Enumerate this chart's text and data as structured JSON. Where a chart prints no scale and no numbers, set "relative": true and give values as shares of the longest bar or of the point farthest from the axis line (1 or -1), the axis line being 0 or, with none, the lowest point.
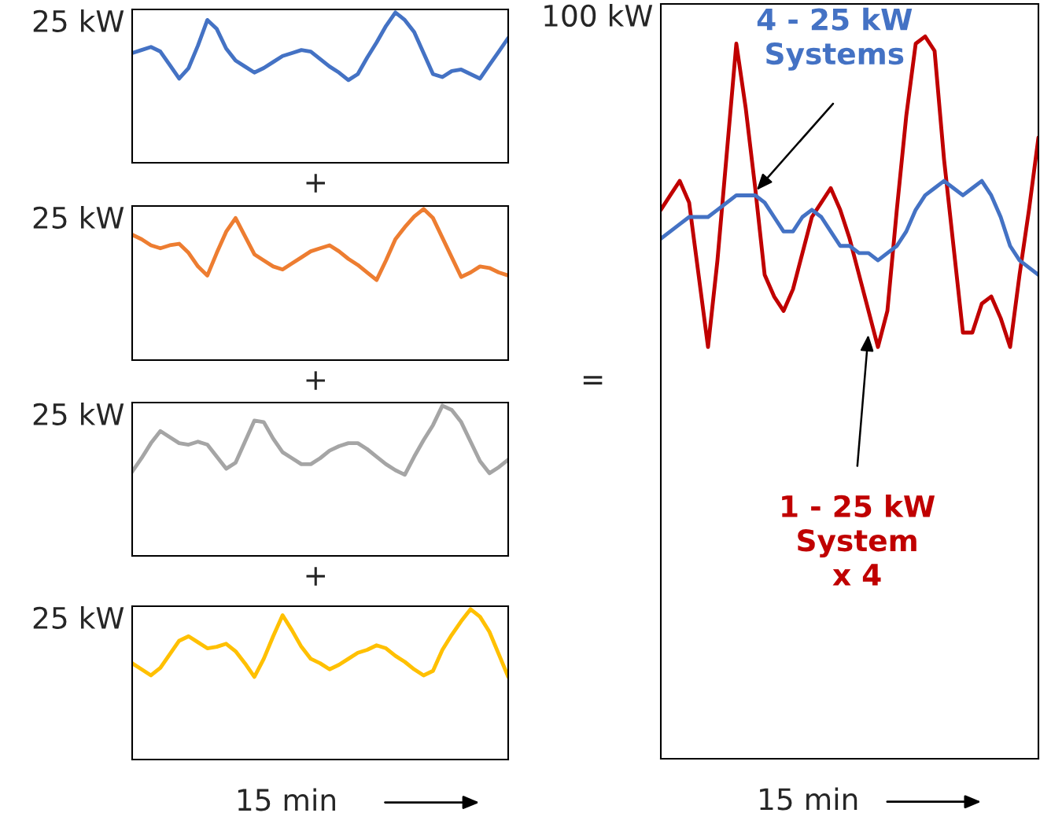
{
  "chart_data": [
    {
      "type": "line",
      "relative": true,
      "categories": [
        null,
        null,
        null,
        null,
        null,
        null,
        null,
        null,
        null,
        null,
        null,
        null,
        null,
        null,
        null,
        null,
        null,
        null,
        null,
        null,
        null,
        null,
        null,
        null,
        null,
        null,
        null,
        null,
        null,
        null,
        null,
        null,
        null,
        null,
        null,
        null,
        null,
        null,
        null,
        null,
        null
      ],
      "ylabel": "25 kW",
      "annotations": [
        "+"
      ],
      "series": [
        {
          "color": "#4472c4",
          "values": [
            0.73,
            0.75,
            0.77,
            0.74,
            0.65,
            0.56,
            0.63,
            0.78,
            0.95,
            0.89,
            0.76,
            0.68,
            0.64,
            0.6,
            0.63,
            0.67,
            0.71,
            0.73,
            0.75,
            0.74,
            0.69,
            0.64,
            0.6,
            0.55,
            0.59,
            0.7,
            0.8,
            0.91,
            1.0,
            0.95,
            0.87,
            0.73,
            0.59,
            0.57,
            0.61,
            0.62,
            0.59,
            0.56,
            0.65,
            0.74,
            0.83
          ]
        }
      ]
    },
    {
      "type": "line",
      "relative": true,
      "categories": [
        null,
        null,
        null,
        null,
        null,
        null,
        null,
        null,
        null,
        null,
        null,
        null,
        null,
        null,
        null,
        null,
        null,
        null,
        null,
        null,
        null,
        null,
        null,
        null,
        null,
        null,
        null,
        null,
        null,
        null,
        null,
        null,
        null,
        null,
        null,
        null,
        null,
        null,
        null,
        null,
        null
      ],
      "ylabel": "25 kW",
      "annotations": [
        "+"
      ],
      "series": [
        {
          "color": "#ed7d31",
          "values": [
            0.83,
            0.8,
            0.76,
            0.74,
            0.76,
            0.77,
            0.71,
            0.62,
            0.56,
            0.71,
            0.85,
            0.94,
            0.82,
            0.7,
            0.66,
            0.62,
            0.6,
            0.64,
            0.68,
            0.72,
            0.74,
            0.76,
            0.72,
            0.67,
            0.63,
            0.58,
            0.53,
            0.66,
            0.8,
            0.88,
            0.95,
            1.0,
            0.94,
            0.81,
            0.68,
            0.55,
            0.58,
            0.62,
            0.61,
            0.58,
            0.56
          ]
        }
      ]
    },
    {
      "type": "line",
      "relative": true,
      "categories": [
        null,
        null,
        null,
        null,
        null,
        null,
        null,
        null,
        null,
        null,
        null,
        null,
        null,
        null,
        null,
        null,
        null,
        null,
        null,
        null,
        null,
        null,
        null,
        null,
        null,
        null,
        null,
        null,
        null,
        null,
        null,
        null,
        null,
        null,
        null,
        null,
        null,
        null,
        null,
        null,
        null
      ],
      "ylabel": "25 kW",
      "annotations": [
        "+"
      ],
      "series": [
        {
          "color": "#a5a5a5",
          "values": [
            0.56,
            0.65,
            0.75,
            0.83,
            0.79,
            0.75,
            0.74,
            0.76,
            0.74,
            0.66,
            0.58,
            0.62,
            0.76,
            0.9,
            0.89,
            0.78,
            0.69,
            0.65,
            0.61,
            0.61,
            0.65,
            0.7,
            0.73,
            0.75,
            0.75,
            0.71,
            0.66,
            0.61,
            0.57,
            0.54,
            0.66,
            0.77,
            0.87,
            1.0,
            0.97,
            0.89,
            0.76,
            0.63,
            0.55,
            0.59,
            0.64
          ]
        }
      ]
    },
    {
      "type": "line",
      "relative": true,
      "categories": [
        null,
        null,
        null,
        null,
        null,
        null,
        null,
        null,
        null,
        null,
        null,
        null,
        null,
        null,
        null,
        null,
        null,
        null,
        null,
        null,
        null,
        null,
        null,
        null,
        null,
        null,
        null,
        null,
        null,
        null,
        null,
        null,
        null,
        null,
        null,
        null,
        null,
        null,
        null,
        null,
        null
      ],
      "ylabel": "25 kW",
      "xlabel": "15 min",
      "series": [
        {
          "color": "#ffc000",
          "values": [
            0.64,
            0.6,
            0.56,
            0.61,
            0.7,
            0.79,
            0.82,
            0.78,
            0.74,
            0.75,
            0.77,
            0.72,
            0.64,
            0.55,
            0.67,
            0.82,
            0.96,
            0.86,
            0.75,
            0.67,
            0.64,
            0.6,
            0.63,
            0.67,
            0.71,
            0.73,
            0.76,
            0.74,
            0.69,
            0.65,
            0.6,
            0.56,
            0.59,
            0.73,
            0.83,
            0.92,
            1.0,
            0.95,
            0.85,
            0.7,
            0.55
          ]
        }
      ]
    },
    {
      "type": "line",
      "relative": true,
      "categories": [
        null,
        null,
        null,
        null,
        null,
        null,
        null,
        null,
        null,
        null,
        null,
        null,
        null,
        null,
        null,
        null,
        null,
        null,
        null,
        null,
        null,
        null,
        null,
        null,
        null,
        null,
        null,
        null,
        null,
        null,
        null,
        null,
        null,
        null,
        null,
        null,
        null,
        null,
        null,
        null,
        null
      ],
      "ylabel": "100 kW",
      "xlabel": "15 min",
      "annotations": [
        "="
      ],
      "series": [
        {
          "name": "1 - 25 kW\nSystem\nx 4",
          "color": "#c00000",
          "values": [
            0.76,
            0.78,
            0.8,
            0.77,
            0.67,
            0.57,
            0.69,
            0.84,
            0.99,
            0.9,
            0.79,
            0.67,
            0.64,
            0.62,
            0.65,
            0.7,
            0.75,
            0.77,
            0.79,
            0.76,
            0.72,
            0.67,
            0.62,
            0.57,
            0.62,
            0.76,
            0.89,
            0.99,
            1.0,
            0.98,
            0.83,
            0.71,
            0.59,
            0.59,
            0.63,
            0.64,
            0.61,
            0.57,
            0.67,
            0.76,
            0.86
          ]
        },
        {
          "name": "4 - 25 kW\nSystems",
          "color": "#4472c4",
          "values": [
            0.72,
            0.73,
            0.74,
            0.75,
            0.75,
            0.75,
            0.76,
            0.77,
            0.78,
            0.78,
            0.78,
            0.77,
            0.75,
            0.73,
            0.73,
            0.75,
            0.76,
            0.75,
            0.73,
            0.71,
            0.71,
            0.7,
            0.7,
            0.69,
            0.7,
            0.71,
            0.73,
            0.76,
            0.78,
            0.79,
            0.8,
            0.79,
            0.78,
            0.79,
            0.8,
            0.78,
            0.75,
            0.71,
            0.69,
            0.68,
            0.67
          ]
        }
      ]
    }
  ]
}
